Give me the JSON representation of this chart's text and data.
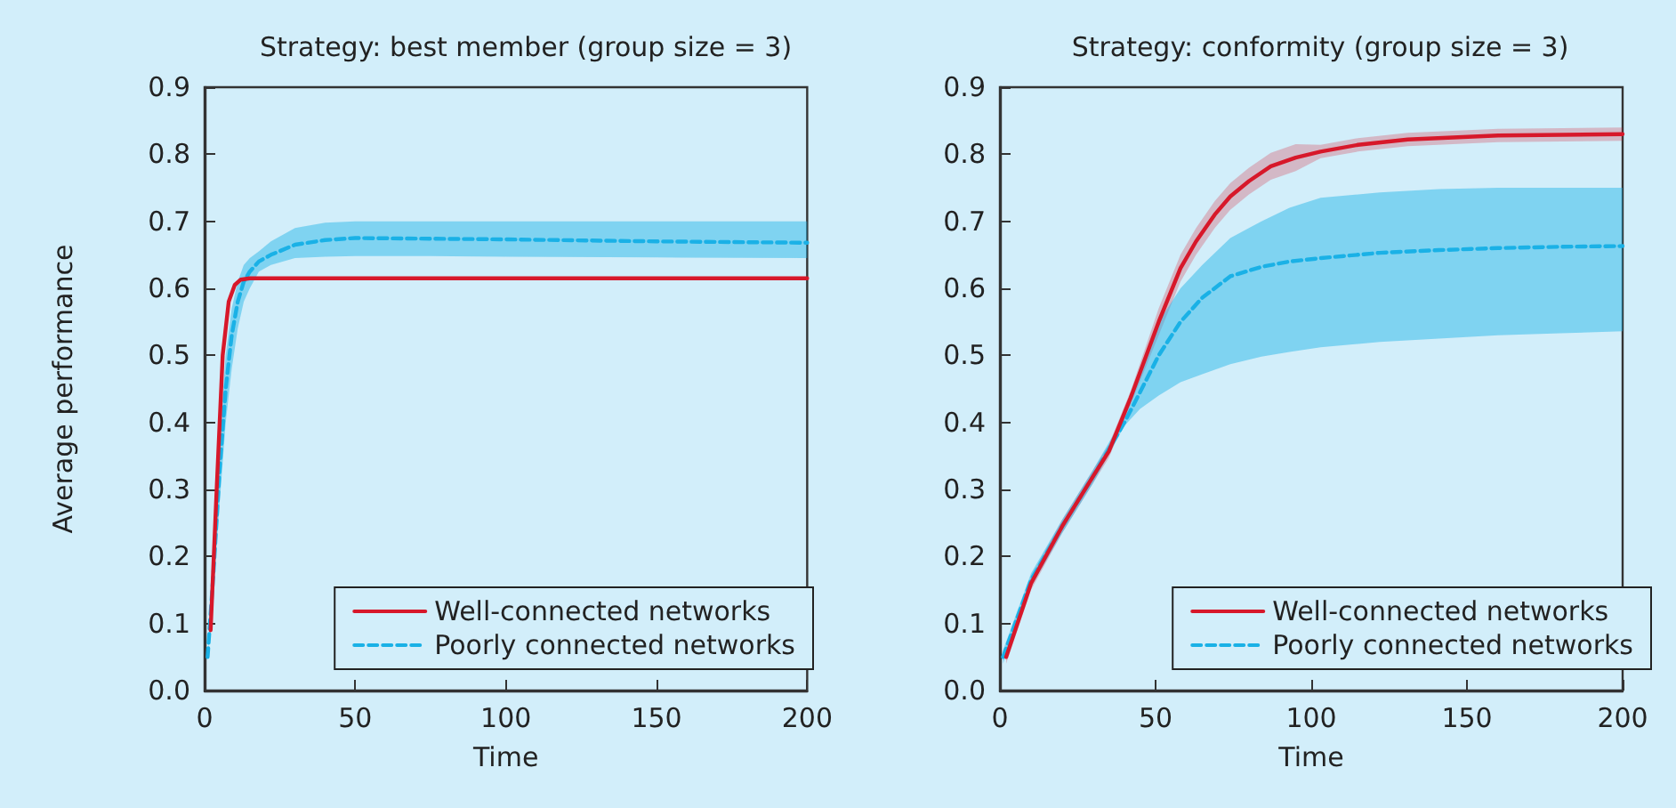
{
  "chart_data": [
    {
      "type": "line",
      "title": "Strategy: best member (group size = 3)",
      "xlabel": "Time",
      "ylabel": "Average performance",
      "xlim": [
        0,
        200
      ],
      "xticks": [
        0,
        50,
        100,
        150,
        200
      ],
      "ylim": [
        0,
        0.9
      ],
      "yticks": [
        {
          "value": 0,
          "label": "0.0"
        },
        0.1,
        0.2,
        0.3,
        0.4,
        0.5,
        0.6,
        0.7,
        0.8,
        0.9
      ],
      "grid": false,
      "legend": "bottom right",
      "series": [
        {
          "name": "Well-connected networks",
          "color": "#d7182a",
          "line_style": "solid",
          "x": [
            2,
            4,
            6,
            8,
            10,
            12,
            15,
            20,
            50,
            100,
            150,
            200
          ],
          "values": [
            0.09,
            0.3,
            0.5,
            0.58,
            0.605,
            0.613,
            0.615,
            0.615,
            0.615,
            0.615,
            0.615,
            0.615
          ]
        },
        {
          "name": "Poorly connected networks",
          "color": "#1ab1e6",
          "line_style": "dashed",
          "x": [
            1,
            3,
            5,
            7,
            9,
            11,
            13,
            15,
            18,
            22,
            30,
            40,
            50,
            75,
            100,
            150,
            200
          ],
          "values": [
            0.05,
            0.18,
            0.33,
            0.45,
            0.53,
            0.58,
            0.61,
            0.625,
            0.64,
            0.65,
            0.665,
            0.672,
            0.675,
            0.674,
            0.673,
            0.67,
            0.668
          ],
          "lower": [
            0.05,
            0.15,
            0.28,
            0.4,
            0.48,
            0.54,
            0.58,
            0.6,
            0.625,
            0.635,
            0.645,
            0.647,
            0.648,
            0.648,
            0.647,
            0.646,
            0.645
          ],
          "upper": [
            0.05,
            0.21,
            0.38,
            0.5,
            0.57,
            0.61,
            0.635,
            0.645,
            0.655,
            0.67,
            0.69,
            0.698,
            0.7,
            0.7,
            0.7,
            0.7,
            0.7
          ]
        }
      ],
      "tick_labels": true
    },
    {
      "type": "line",
      "title": "Strategy: conformity (group size = 3)",
      "xlabel": "Time",
      "xlim": [
        0,
        200
      ],
      "xticks": [
        0,
        50,
        100,
        150,
        200
      ],
      "ylim": [
        0,
        0.9
      ],
      "yticks": [
        {
          "value": 0,
          "label": "0.0"
        },
        0.1,
        0.2,
        0.3,
        0.4,
        0.5,
        0.6,
        0.7,
        0.8,
        0.9
      ],
      "grid": false,
      "legend": "bottom right",
      "series": [
        {
          "name": "Well-connected networks",
          "color": "#d7182a",
          "line_style": "solid",
          "x": [
            2,
            10,
            20,
            30,
            35,
            42,
            51,
            58,
            63,
            69,
            74,
            80,
            87,
            95,
            103,
            115,
            131,
            160,
            200
          ],
          "values": [
            0.05,
            0.16,
            0.245,
            0.32,
            0.357,
            0.437,
            0.55,
            0.63,
            0.67,
            0.71,
            0.737,
            0.76,
            0.782,
            0.795,
            0.804,
            0.814,
            0.822,
            0.828,
            0.83
          ],
          "lower": [
            0.04,
            0.15,
            0.235,
            0.31,
            0.347,
            0.427,
            0.53,
            0.61,
            0.65,
            0.69,
            0.717,
            0.74,
            0.762,
            0.775,
            0.794,
            0.804,
            0.812,
            0.818,
            0.82
          ],
          "upper": [
            0.06,
            0.17,
            0.255,
            0.33,
            0.367,
            0.447,
            0.57,
            0.65,
            0.69,
            0.73,
            0.757,
            0.78,
            0.802,
            0.815,
            0.814,
            0.824,
            0.832,
            0.838,
            0.84
          ]
        },
        {
          "name": "Poorly connected networks",
          "color": "#1ab1e6",
          "line_style": "dashed",
          "x": [
            1,
            10,
            20,
            30,
            40,
            45,
            51,
            58,
            65,
            74,
            84,
            93,
            103,
            122,
            141,
            160,
            180,
            200
          ],
          "values": [
            0.05,
            0.165,
            0.245,
            0.32,
            0.4,
            0.445,
            0.5,
            0.55,
            0.586,
            0.618,
            0.632,
            0.64,
            0.645,
            0.653,
            0.657,
            0.66,
            0.662,
            0.663
          ],
          "lower": [
            0.04,
            0.155,
            0.235,
            0.31,
            0.395,
            0.42,
            0.44,
            0.46,
            0.472,
            0.487,
            0.498,
            0.505,
            0.512,
            0.52,
            0.525,
            0.53,
            0.533,
            0.536
          ],
          "upper": [
            0.06,
            0.175,
            0.255,
            0.33,
            0.41,
            0.47,
            0.55,
            0.6,
            0.635,
            0.675,
            0.7,
            0.72,
            0.735,
            0.743,
            0.748,
            0.75,
            0.75,
            0.75
          ]
        }
      ],
      "tick_labels": true
    }
  ]
}
